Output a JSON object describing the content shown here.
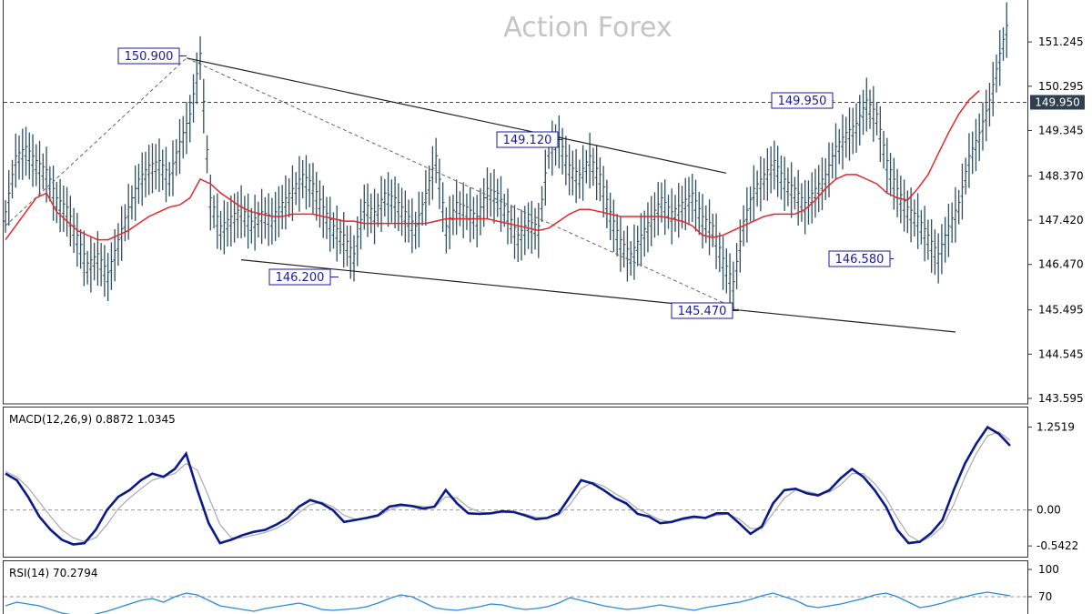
{
  "watermark": "Action Forex",
  "colors": {
    "bar": "#2f4f5f",
    "ma": "#e8262a",
    "trendline": "#222222",
    "dashed": "#666666",
    "annot_border": "#1a1aa0",
    "annot_text": "#1a1aa0",
    "macd_main": "#0a1a8a",
    "macd_signal": "#a8a8b8",
    "rsi": "#2a8ae0",
    "price_tag_bg": "#2f3f4f",
    "grid": "#888888"
  },
  "chart_data": [
    {
      "type": "ohlc",
      "panel": "price",
      "y_ticks": [
        "151.245",
        "150.295",
        "149.345",
        "148.370",
        "147.420",
        "146.470",
        "145.495",
        "144.545",
        "143.595"
      ],
      "ylim": [
        143.595,
        151.95
      ],
      "current_price": "149.950",
      "horizontal_level": 149.95,
      "annotations": [
        {
          "label": "150.900",
          "value": 150.9
        },
        {
          "label": "149.120",
          "value": 149.12
        },
        {
          "label": "149.950",
          "value": 149.95
        },
        {
          "label": "146.200",
          "value": 146.2
        },
        {
          "label": "145.470",
          "value": 145.47
        },
        {
          "label": "146.580",
          "value": 146.58
        }
      ],
      "series": [
        {
          "name": "",
          "kind": "close",
          "values": [
            147.5,
            148.7,
            148.9,
            148.6,
            148.4,
            147.8,
            147.6,
            147.0,
            146.4,
            146.6,
            146.2,
            146.9,
            147.6,
            148.2,
            148.5,
            148.6,
            148.3,
            149.0,
            149.6,
            150.9,
            147.8,
            147.2,
            147.4,
            147.6,
            147.3,
            147.5,
            147.4,
            147.7,
            148.0,
            148.3,
            148.1,
            147.6,
            147.2,
            147.0,
            146.6,
            147.7,
            147.5,
            147.9,
            147.8,
            147.5,
            147.2,
            147.9,
            148.7,
            147.2,
            147.7,
            147.6,
            147.4,
            148.0,
            147.9,
            147.5,
            147.0,
            147.3,
            147.2,
            148.9,
            149.1,
            148.5,
            148.3,
            148.7,
            148.3,
            147.5,
            146.9,
            146.6,
            147.0,
            147.4,
            147.8,
            147.5,
            147.7,
            147.9,
            147.4,
            147.2,
            146.5,
            146.0,
            147.3,
            148.0,
            148.3,
            148.6,
            148.2,
            148.0,
            147.7,
            148.0,
            148.3,
            148.9,
            149.2,
            149.4,
            149.9,
            149.6,
            148.6,
            148.0,
            147.6,
            147.4,
            147.0,
            146.6,
            147.2,
            147.7,
            148.7,
            149.2,
            149.9,
            150.9,
            151.8
          ]
        },
        {
          "name": "",
          "kind": "ma",
          "values": [
            147.0,
            147.3,
            147.6,
            147.9,
            148.0,
            147.6,
            147.4,
            147.2,
            147.1,
            147.0,
            147.0,
            147.1,
            147.2,
            147.35,
            147.5,
            147.6,
            147.7,
            147.75,
            147.9,
            148.3,
            148.2,
            148.0,
            147.85,
            147.7,
            147.6,
            147.55,
            147.5,
            147.5,
            147.55,
            147.55,
            147.55,
            147.5,
            147.45,
            147.4,
            147.4,
            147.35,
            147.35,
            147.35,
            147.35,
            147.35,
            147.35,
            147.35,
            147.4,
            147.45,
            147.45,
            147.45,
            147.45,
            147.45,
            147.4,
            147.35,
            147.3,
            147.25,
            147.2,
            147.25,
            147.4,
            147.55,
            147.65,
            147.65,
            147.6,
            147.55,
            147.5,
            147.5,
            147.5,
            147.5,
            147.5,
            147.45,
            147.4,
            147.3,
            147.1,
            147.05,
            147.1,
            147.2,
            147.3,
            147.4,
            147.5,
            147.55,
            147.55,
            147.55,
            147.65,
            147.85,
            148.1,
            148.3,
            148.4,
            148.4,
            148.3,
            148.2,
            148.0,
            147.9,
            147.85,
            148.1,
            148.4,
            148.85,
            149.3,
            149.7,
            150.0,
            150.2
          ]
        }
      ]
    },
    {
      "type": "line",
      "panel": "macd",
      "title": "MACD(12,26,9) 0.8872 1.0345",
      "y_ticks": [
        "1.2519",
        "0.00",
        "-0.5422"
      ],
      "ylim": [
        -0.65,
        1.45
      ],
      "zero_level": 0,
      "series": [
        {
          "name": "",
          "values": [
            0.55,
            0.45,
            0.2,
            -0.1,
            -0.3,
            -0.45,
            -0.52,
            -0.5,
            -0.3,
            0.0,
            0.2,
            0.3,
            0.45,
            0.55,
            0.5,
            0.62,
            0.85,
            0.3,
            -0.2,
            -0.5,
            -0.45,
            -0.38,
            -0.33,
            -0.3,
            -0.22,
            -0.12,
            0.05,
            0.15,
            0.1,
            0.0,
            -0.18,
            -0.15,
            -0.12,
            -0.08,
            0.05,
            0.08,
            0.06,
            0.02,
            0.05,
            0.3,
            0.1,
            -0.05,
            -0.06,
            -0.05,
            -0.02,
            -0.03,
            -0.08,
            -0.14,
            -0.12,
            -0.05,
            0.2,
            0.45,
            0.4,
            0.3,
            0.18,
            0.1,
            -0.06,
            -0.1,
            -0.2,
            -0.18,
            -0.13,
            -0.1,
            -0.12,
            -0.05,
            -0.05,
            -0.2,
            -0.36,
            -0.25,
            0.1,
            0.3,
            0.32,
            0.25,
            0.22,
            0.3,
            0.48,
            0.62,
            0.5,
            0.3,
            0.05,
            -0.3,
            -0.5,
            -0.48,
            -0.35,
            -0.15,
            0.3,
            0.7,
            1.0,
            1.25,
            1.15,
            0.97
          ]
        },
        {
          "name": "",
          "values": [
            0.58,
            0.5,
            0.34,
            0.12,
            -0.1,
            -0.3,
            -0.42,
            -0.48,
            -0.42,
            -0.22,
            0.02,
            0.18,
            0.32,
            0.45,
            0.5,
            0.55,
            0.7,
            0.6,
            0.2,
            -0.22,
            -0.42,
            -0.42,
            -0.38,
            -0.34,
            -0.28,
            -0.18,
            -0.04,
            0.08,
            0.12,
            0.05,
            -0.08,
            -0.14,
            -0.13,
            -0.1,
            0.0,
            0.06,
            0.07,
            0.05,
            0.04,
            0.2,
            0.18,
            0.04,
            -0.03,
            -0.05,
            -0.04,
            -0.04,
            -0.06,
            -0.11,
            -0.12,
            -0.08,
            0.08,
            0.32,
            0.42,
            0.36,
            0.25,
            0.15,
            0.02,
            -0.07,
            -0.15,
            -0.18,
            -0.15,
            -0.12,
            -0.12,
            -0.08,
            -0.06,
            -0.14,
            -0.28,
            -0.28,
            -0.05,
            0.18,
            0.3,
            0.28,
            0.24,
            0.27,
            0.38,
            0.55,
            0.55,
            0.4,
            0.18,
            -0.12,
            -0.38,
            -0.48,
            -0.4,
            -0.25,
            0.08,
            0.5,
            0.85,
            1.12,
            1.18,
            1.05
          ]
        }
      ]
    },
    {
      "type": "line",
      "panel": "rsi",
      "title": "RSI(14) 70.2794",
      "y_ticks": [
        "100",
        "70"
      ],
      "ylim": [
        40,
        100
      ],
      "level": 70,
      "series": [
        {
          "name": "",
          "values": [
            60,
            64,
            62,
            60,
            56,
            52,
            50,
            48,
            51,
            54,
            58,
            62,
            66,
            68,
            64,
            70,
            74,
            72,
            66,
            60,
            58,
            56,
            54,
            57,
            59,
            61,
            63,
            60,
            56,
            55,
            56,
            57,
            59,
            63,
            68,
            72,
            70,
            64,
            58,
            56,
            55,
            57,
            59,
            62,
            61,
            58,
            56,
            57,
            59,
            63,
            69,
            66,
            63,
            60,
            58,
            56,
            57,
            59,
            61,
            59,
            57,
            55,
            58,
            60,
            62,
            64,
            67,
            71,
            74,
            70,
            66,
            60,
            58,
            60,
            62,
            65,
            68,
            72,
            74,
            70,
            64,
            58,
            60,
            63,
            67,
            70,
            73,
            75,
            73,
            71
          ]
        }
      ]
    }
  ]
}
